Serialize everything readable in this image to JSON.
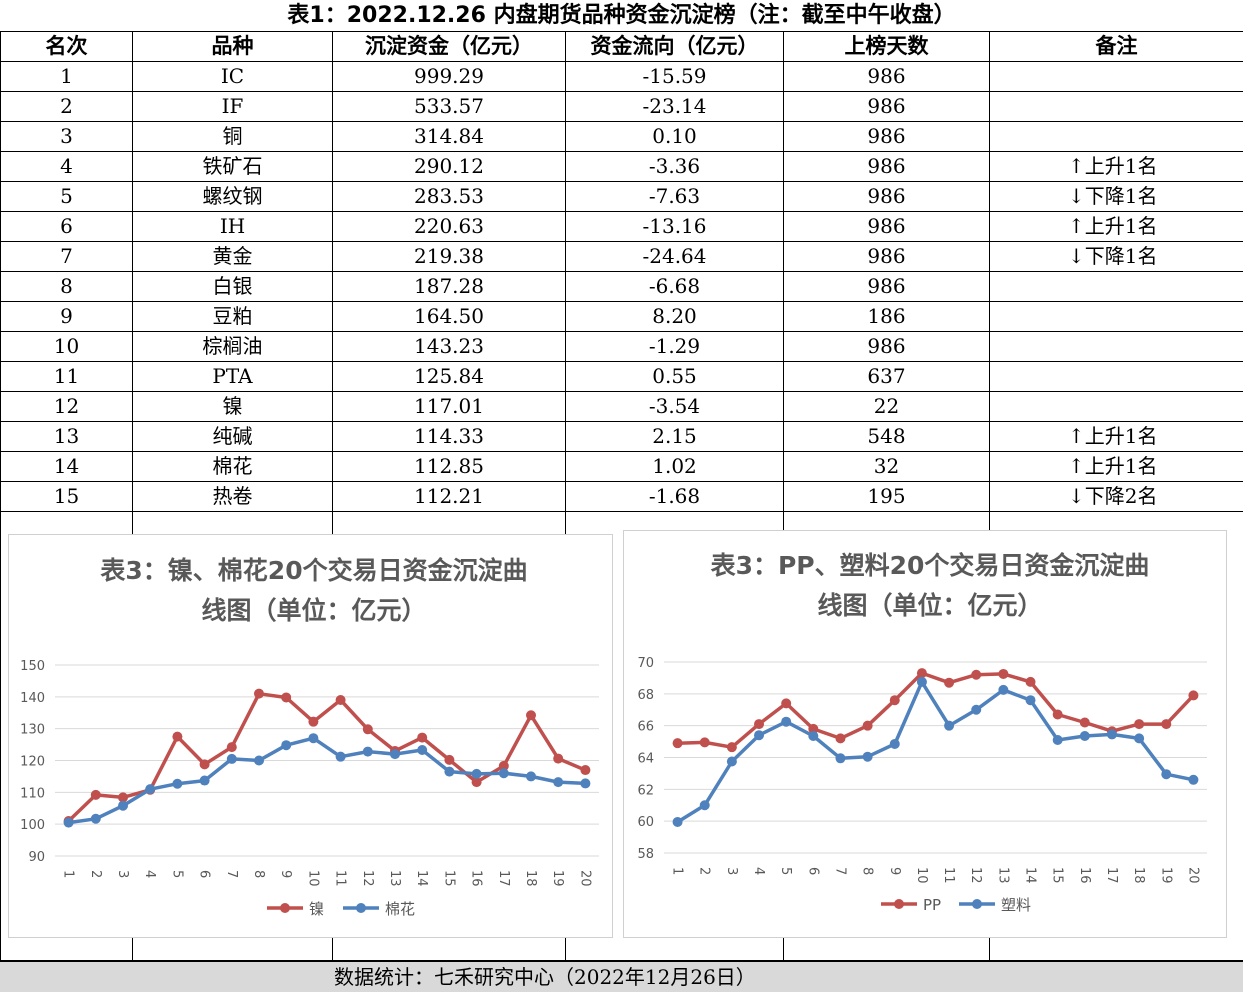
{
  "table_title": "表1：2022.12.26 内盘期货品种资金沉淀榜（注：截至中午收盘）",
  "headers": [
    "名次",
    "品种",
    "沉淀资金（亿元）",
    "资金流向（亿元）",
    "上榜天数",
    "备注"
  ],
  "rows": [
    {
      "rank": "1",
      "name": "IC",
      "funds": "999.29",
      "flow": "-15.59",
      "days": "986",
      "note": ""
    },
    {
      "rank": "2",
      "name": "IF",
      "funds": "533.57",
      "flow": "-23.14",
      "days": "986",
      "note": ""
    },
    {
      "rank": "3",
      "name": "铜",
      "funds": "314.84",
      "flow": "0.10",
      "days": "986",
      "note": ""
    },
    {
      "rank": "4",
      "name": "铁矿石",
      "funds": "290.12",
      "flow": "-3.36",
      "days": "986",
      "note": "↑上升1名"
    },
    {
      "rank": "5",
      "name": "螺纹钢",
      "funds": "283.53",
      "flow": "-7.63",
      "days": "986",
      "note": "↓下降1名"
    },
    {
      "rank": "6",
      "name": "IH",
      "funds": "220.63",
      "flow": "-13.16",
      "days": "986",
      "note": "↑上升1名"
    },
    {
      "rank": "7",
      "name": "黄金",
      "funds": "219.38",
      "flow": "-24.64",
      "days": "986",
      "note": "↓下降1名"
    },
    {
      "rank": "8",
      "name": "白银",
      "funds": "187.28",
      "flow": "-6.68",
      "days": "986",
      "note": ""
    },
    {
      "rank": "9",
      "name": "豆粕",
      "funds": "164.50",
      "flow": "8.20",
      "days": "186",
      "note": ""
    },
    {
      "rank": "10",
      "name": "棕榈油",
      "funds": "143.23",
      "flow": "-1.29",
      "days": "986",
      "note": ""
    },
    {
      "rank": "11",
      "name": "PTA",
      "funds": "125.84",
      "flow": "0.55",
      "days": "637",
      "note": ""
    },
    {
      "rank": "12",
      "name": "镍",
      "funds": "117.01",
      "flow": "-3.54",
      "days": "22",
      "note": ""
    },
    {
      "rank": "13",
      "name": "纯碱",
      "funds": "114.33",
      "flow": "2.15",
      "days": "548",
      "note": "↑上升1名"
    },
    {
      "rank": "14",
      "name": "棉花",
      "funds": "112.85",
      "flow": "1.02",
      "days": "32",
      "note": "↑上升1名"
    },
    {
      "rank": "15",
      "name": "热卷",
      "funds": "112.21",
      "flow": "-1.68",
      "days": "195",
      "note": "↓下降2名"
    }
  ],
  "footer": "数据统计：七禾研究中心（2022年12月26日）",
  "chart_data": [
    {
      "type": "line",
      "title_line1": "表3：镍、棉花20个交易日资金沉淀曲",
      "title_line2": "线图（单位：亿元）",
      "categories": [
        "1",
        "2",
        "3",
        "4",
        "5",
        "6",
        "7",
        "8",
        "9",
        "10",
        "11",
        "12",
        "13",
        "14",
        "15",
        "16",
        "17",
        "18",
        "19",
        "20"
      ],
      "ylim": [
        90,
        150
      ],
      "yticks": [
        90,
        100,
        110,
        120,
        130,
        140,
        150
      ],
      "grid": true,
      "legend": "bottom",
      "series": [
        {
          "name": "镍",
          "color": "#c0504d",
          "values": [
            101,
            109.2,
            108.4,
            110.8,
            127.5,
            118.8,
            124.2,
            141,
            139.8,
            132.2,
            139,
            129.8,
            123,
            127.2,
            120.2,
            113.2,
            118.3,
            134.2,
            120.6,
            117
          ]
        },
        {
          "name": "棉花",
          "color": "#4f81bd",
          "values": [
            100.5,
            101.7,
            105.8,
            111,
            112.7,
            113.7,
            120.5,
            120,
            124.8,
            127,
            121.2,
            122.8,
            122,
            123.3,
            116.5,
            115.8,
            116,
            115,
            113.2,
            112.8
          ]
        }
      ]
    },
    {
      "type": "line",
      "title_line1": "表3：PP、塑料20个交易日资金沉淀曲",
      "title_line2": "线图（单位：亿元）",
      "categories": [
        "1",
        "2",
        "3",
        "4",
        "5",
        "6",
        "7",
        "8",
        "9",
        "10",
        "11",
        "12",
        "13",
        "14",
        "15",
        "16",
        "17",
        "18",
        "19",
        "20"
      ],
      "ylim": [
        58,
        70
      ],
      "yticks": [
        58,
        60,
        62,
        64,
        66,
        68,
        70
      ],
      "grid": true,
      "legend": "bottom",
      "series": [
        {
          "name": "PP",
          "color": "#c0504d",
          "values": [
            64.9,
            64.95,
            64.65,
            66.1,
            67.4,
            65.8,
            65.2,
            66,
            67.6,
            69.3,
            68.7,
            69.2,
            69.25,
            68.75,
            66.7,
            66.2,
            65.65,
            66.1,
            66.1,
            67.9
          ]
        },
        {
          "name": "塑料",
          "color": "#4f81bd",
          "values": [
            59.95,
            61,
            63.75,
            65.4,
            66.25,
            65.35,
            63.95,
            64.05,
            64.85,
            68.75,
            66,
            67,
            68.25,
            67.6,
            65.1,
            65.35,
            65.45,
            65.2,
            62.95,
            62.6
          ]
        }
      ]
    }
  ]
}
